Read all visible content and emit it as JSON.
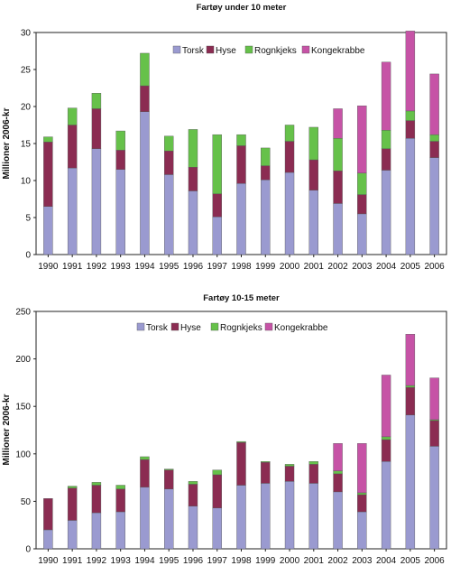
{
  "chart_data": [
    {
      "type": "bar",
      "stacked": true,
      "title": "Fartøy under 10 meter",
      "ylabel": "Millioner 2006-kr",
      "xlabel": "",
      "ylim": [
        0,
        30
      ],
      "yticks": [
        0,
        5,
        10,
        15,
        20,
        25,
        30
      ],
      "grid": false,
      "legend": "top-right",
      "categories": [
        "1990",
        "1991",
        "1992",
        "1993",
        "1994",
        "1995",
        "1996",
        "1997",
        "1998",
        "1999",
        "2000",
        "2001",
        "2002",
        "2003",
        "2004",
        "2005",
        "2006"
      ],
      "series": [
        {
          "name": "Torsk",
          "color": "#9a9ad0",
          "values": [
            6.5,
            11.7,
            14.3,
            11.5,
            19.3,
            10.8,
            8.6,
            5.1,
            9.6,
            10.1,
            11.1,
            8.7,
            6.9,
            5.5,
            11.4,
            15.7,
            13.1
          ]
        },
        {
          "name": "Hyse",
          "color": "#8b2c52",
          "values": [
            8.7,
            5.8,
            5.4,
            2.6,
            3.5,
            3.2,
            3.2,
            3.1,
            5.1,
            1.9,
            4.2,
            4.1,
            4.4,
            2.6,
            2.9,
            2.4,
            2.2
          ]
        },
        {
          "name": "Rognkjeks",
          "color": "#66c14a",
          "values": [
            0.7,
            2.3,
            2.1,
            2.6,
            4.4,
            2.0,
            5.1,
            8.0,
            1.5,
            2.4,
            2.2,
            4.4,
            4.4,
            2.9,
            2.5,
            1.3,
            0.9
          ]
        },
        {
          "name": "Kongekrabbe",
          "color": "#c653a6",
          "values": [
            0,
            0,
            0,
            0,
            0,
            0,
            0,
            0,
            0,
            0,
            0,
            0,
            4.0,
            9.1,
            9.2,
            10.8,
            8.2
          ]
        }
      ]
    },
    {
      "type": "bar",
      "stacked": true,
      "title": "Fartøy 10-15 meter",
      "ylabel": "Millioner 2006-kr",
      "xlabel": "",
      "ylim": [
        0,
        250
      ],
      "yticks": [
        0,
        50,
        100,
        150,
        200,
        250
      ],
      "grid": false,
      "legend": "top-right",
      "categories": [
        "1990",
        "1991",
        "1992",
        "1993",
        "1994",
        "1995",
        "1996",
        "1997",
        "1998",
        "1999",
        "2000",
        "2001",
        "2002",
        "2003",
        "2004",
        "2005",
        "2006"
      ],
      "series": [
        {
          "name": "Torsk",
          "color": "#9a9ad0",
          "values": [
            20,
            30,
            38,
            39,
            65,
            63,
            45,
            43,
            67,
            69,
            71,
            69,
            60,
            39,
            92,
            141,
            108
          ]
        },
        {
          "name": "Hyse",
          "color": "#8b2c52",
          "values": [
            33,
            34,
            29,
            24,
            29,
            20,
            23,
            35,
            45,
            22,
            16,
            20,
            19,
            18,
            23,
            29,
            27
          ]
        },
        {
          "name": "Rognkjeks",
          "color": "#66c14a",
          "values": [
            0,
            2,
            3,
            4,
            3,
            1,
            3,
            5,
            1,
            1,
            2,
            3,
            3,
            2,
            3,
            2,
            1
          ]
        },
        {
          "name": "Kongekrabbe",
          "color": "#c653a6",
          "values": [
            0,
            0,
            0,
            0,
            0,
            0,
            0,
            0,
            0,
            0,
            0,
            0,
            29,
            52,
            65,
            54,
            44
          ]
        }
      ]
    }
  ]
}
